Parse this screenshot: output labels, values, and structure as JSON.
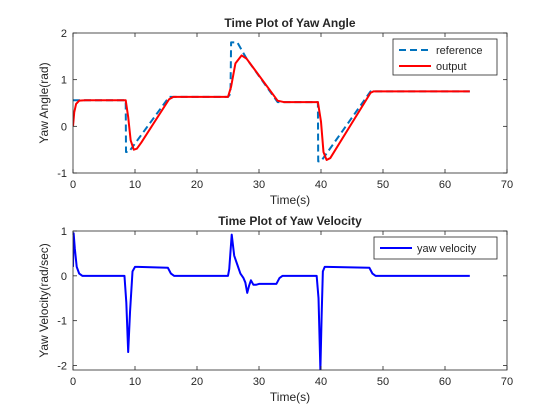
{
  "colors": {
    "reference": "#0072BD",
    "output": "#FF0000",
    "yaw_velocity": "#0000FF",
    "axes": "#262626"
  },
  "chart_data": [
    {
      "type": "line",
      "title": "Time Plot of Yaw Angle",
      "xlabel": "Time(s)",
      "ylabel": "Yaw Angle(rad)",
      "xlim": [
        0,
        70
      ],
      "ylim": [
        -1,
        2
      ],
      "xticks": [
        0,
        10,
        20,
        30,
        40,
        50,
        60,
        70
      ],
      "yticks": [
        -1,
        0,
        1,
        2
      ],
      "legend_position": "top-right",
      "grid": false,
      "series": [
        {
          "name": "reference",
          "style": "dashed",
          "x": [
            0,
            0.05,
            8.5,
            8.55,
            9,
            15.5,
            25,
            25.4,
            25.5,
            26.5,
            28,
            33,
            39.5,
            39.55,
            40,
            48,
            64
          ],
          "y": [
            0.56,
            0.56,
            0.56,
            -0.55,
            -0.55,
            0.63,
            0.63,
            0.7,
            1.8,
            1.8,
            1.45,
            0.52,
            0.52,
            -0.75,
            -0.75,
            0.75,
            0.75
          ]
        },
        {
          "name": "output",
          "style": "solid",
          "x": [
            0,
            0.2,
            0.5,
            1,
            2,
            8.5,
            8.9,
            9.3,
            9.8,
            10.3,
            11,
            15.5,
            16.2,
            25,
            25.5,
            26.2,
            27.2,
            28,
            33,
            34,
            39.5,
            40,
            40.4,
            40.9,
            41.5,
            48,
            48.5,
            64
          ],
          "y": [
            0,
            0.3,
            0.48,
            0.55,
            0.56,
            0.56,
            0.2,
            -0.3,
            -0.5,
            -0.48,
            -0.35,
            0.58,
            0.63,
            0.63,
            0.85,
            1.35,
            1.52,
            1.45,
            0.55,
            0.52,
            0.52,
            0.1,
            -0.55,
            -0.72,
            -0.68,
            0.72,
            0.75,
            0.75
          ]
        }
      ]
    },
    {
      "type": "line",
      "title": "Time Plot of Yaw Velocity",
      "xlabel": "Time(s)",
      "ylabel": "Yaw Velocity(rad/sec)",
      "xlim": [
        0,
        70
      ],
      "ylim": [
        -2.1,
        1
      ],
      "xticks": [
        0,
        10,
        20,
        30,
        40,
        50,
        60,
        70
      ],
      "yticks": [
        -2,
        -1,
        0,
        1
      ],
      "legend_position": "top-right",
      "grid": false,
      "series": [
        {
          "name": "yaw velocity",
          "style": "solid",
          "x": [
            0,
            0.1,
            0.3,
            0.6,
            1,
            1.5,
            8.3,
            8.6,
            8.9,
            9.2,
            9.6,
            10,
            10.5,
            15.3,
            15.8,
            16.3,
            25,
            25.2,
            25.6,
            26,
            26.5,
            27,
            27.5,
            27.8,
            28.1,
            28.4,
            28.7,
            29.1,
            29.5,
            30,
            32.8,
            33.3,
            33.8,
            39.3,
            39.6,
            39.9,
            40.1,
            40.3,
            40.6,
            41,
            47.8,
            48.3,
            48.8,
            64
          ],
          "y": [
            0.2,
            0.95,
            0.6,
            0.2,
            0.05,
            0,
            0,
            -0.6,
            -1.7,
            -0.8,
            0.1,
            0.2,
            0.2,
            0.18,
            0.05,
            0,
            0,
            0.15,
            0.92,
            0.45,
            0.25,
            0.05,
            -0.05,
            -0.15,
            -0.38,
            -0.22,
            -0.1,
            -0.2,
            -0.2,
            -0.18,
            -0.18,
            -0.05,
            0,
            0,
            -0.5,
            -2.1,
            -0.9,
            0.1,
            0.2,
            0.2,
            0.18,
            0.05,
            0,
            0
          ]
        }
      ]
    }
  ]
}
